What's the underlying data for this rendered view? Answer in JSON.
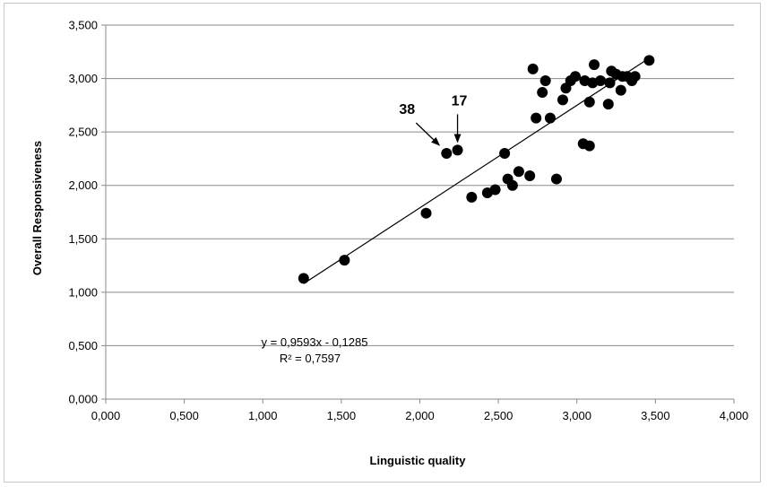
{
  "chart_data": {
    "type": "scatter",
    "title": "",
    "xlabel": "Linguistic quality",
    "ylabel": "Overall Responsiveness",
    "xlim": [
      0,
      4
    ],
    "ylim": [
      0,
      3.5
    ],
    "x_ticks": [
      "0,000",
      "0,500",
      "1,000",
      "1,500",
      "2,000",
      "2,500",
      "3,000",
      "3,500",
      "4,000"
    ],
    "y_ticks": [
      "0,000",
      "0,500",
      "1,000",
      "1,500",
      "2,000",
      "2,500",
      "3,000",
      "3,500"
    ],
    "grid": "horizontal",
    "marker_color": "#000000",
    "points": [
      {
        "x": 1.26,
        "y": 1.13
      },
      {
        "x": 1.52,
        "y": 1.3
      },
      {
        "x": 2.04,
        "y": 1.74
      },
      {
        "x": 2.17,
        "y": 2.3
      },
      {
        "x": 2.24,
        "y": 2.33
      },
      {
        "x": 2.33,
        "y": 1.89
      },
      {
        "x": 2.43,
        "y": 1.93
      },
      {
        "x": 2.48,
        "y": 1.96
      },
      {
        "x": 2.54,
        "y": 2.3
      },
      {
        "x": 2.56,
        "y": 2.06
      },
      {
        "x": 2.59,
        "y": 2.0
      },
      {
        "x": 2.63,
        "y": 2.13
      },
      {
        "x": 2.7,
        "y": 2.09
      },
      {
        "x": 2.72,
        "y": 3.09
      },
      {
        "x": 2.74,
        "y": 2.63
      },
      {
        "x": 2.78,
        "y": 2.87
      },
      {
        "x": 2.8,
        "y": 2.98
      },
      {
        "x": 2.83,
        "y": 2.63
      },
      {
        "x": 2.87,
        "y": 2.06
      },
      {
        "x": 2.91,
        "y": 2.8
      },
      {
        "x": 2.93,
        "y": 2.91
      },
      {
        "x": 2.96,
        "y": 2.98
      },
      {
        "x": 2.99,
        "y": 3.02
      },
      {
        "x": 3.04,
        "y": 2.39
      },
      {
        "x": 3.05,
        "y": 2.98
      },
      {
        "x": 3.08,
        "y": 2.37
      },
      {
        "x": 3.08,
        "y": 2.78
      },
      {
        "x": 3.1,
        "y": 2.96
      },
      {
        "x": 3.11,
        "y": 3.13
      },
      {
        "x": 3.15,
        "y": 2.98
      },
      {
        "x": 3.2,
        "y": 2.76
      },
      {
        "x": 3.21,
        "y": 2.96
      },
      {
        "x": 3.22,
        "y": 3.07
      },
      {
        "x": 3.25,
        "y": 3.04
      },
      {
        "x": 3.28,
        "y": 2.89
      },
      {
        "x": 3.29,
        "y": 3.02
      },
      {
        "x": 3.32,
        "y": 3.02
      },
      {
        "x": 3.35,
        "y": 2.98
      },
      {
        "x": 3.37,
        "y": 3.02
      },
      {
        "x": 3.46,
        "y": 3.17
      }
    ],
    "trendline": {
      "x_start": 1.26,
      "x_end": 3.46,
      "slope": 0.9593,
      "intercept": -0.1285
    },
    "equation_text": "y = 0,9593x - 0,1285",
    "r2_text": "R² = 0,7597",
    "annotations": [
      {
        "label": "38",
        "target_x": 2.17,
        "target_y": 2.3
      },
      {
        "label": "17",
        "target_x": 2.24,
        "target_y": 2.33
      }
    ]
  }
}
